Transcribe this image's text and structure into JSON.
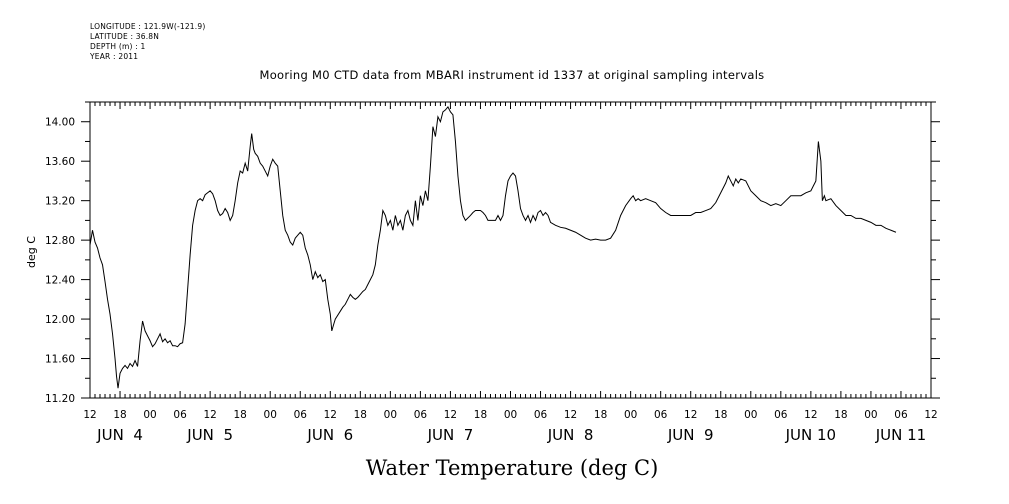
{
  "metadata": [
    "LONGITUDE : 121.9W(-121.9)",
    "LATITUDE : 36.8N",
    "DEPTH (m) : 1",
    "YEAR : 2011"
  ],
  "chart_data": {
    "type": "line",
    "title": "Mooring M0 CTD data from MBARI instrument id 1337 at original sampling intervals",
    "xlabel": "Water Temperature (deg C)",
    "ylabel": "deg C",
    "ylim": [
      11.2,
      14.2
    ],
    "y_ticks": [
      "11.20",
      "11.60",
      "12.00",
      "12.40",
      "12.80",
      "13.20",
      "13.60",
      "14.00"
    ],
    "x_hours_range": [
      0,
      168
    ],
    "x_hour_ticks": [
      "12",
      "18",
      "00",
      "06",
      "12",
      "18",
      "00",
      "06",
      "12",
      "18",
      "00",
      "06",
      "12",
      "18",
      "00",
      "06",
      "12",
      "18",
      "00",
      "06",
      "12",
      "18",
      "00",
      "06",
      "12",
      "18",
      "00",
      "06",
      "12"
    ],
    "x_day_labels": [
      {
        "label": "JUN  4",
        "hour": 6
      },
      {
        "label": "JUN  5",
        "hour": 24
      },
      {
        "label": "JUN  6",
        "hour": 48
      },
      {
        "label": "JUN  7",
        "hour": 72
      },
      {
        "label": "JUN  8",
        "hour": 96
      },
      {
        "label": "JUN  9",
        "hour": 120
      },
      {
        "label": "JUN 10",
        "hour": 144
      },
      {
        "label": "JUN 11",
        "hour": 162
      }
    ],
    "series": [
      {
        "points": [
          [
            0,
            12.75
          ],
          [
            0.5,
            12.9
          ],
          [
            1,
            12.78
          ],
          [
            1.5,
            12.72
          ],
          [
            2,
            12.62
          ],
          [
            2.5,
            12.55
          ],
          [
            3,
            12.38
          ],
          [
            3.5,
            12.2
          ],
          [
            4,
            12.05
          ],
          [
            4.5,
            11.85
          ],
          [
            5,
            11.6
          ],
          [
            5.3,
            11.42
          ],
          [
            5.6,
            11.3
          ],
          [
            6,
            11.45
          ],
          [
            6.5,
            11.5
          ],
          [
            7,
            11.53
          ],
          [
            7.5,
            11.5
          ],
          [
            8,
            11.55
          ],
          [
            8.5,
            11.52
          ],
          [
            9,
            11.58
          ],
          [
            9.5,
            11.52
          ],
          [
            10,
            11.78
          ],
          [
            10.5,
            11.98
          ],
          [
            11,
            11.88
          ],
          [
            11.5,
            11.83
          ],
          [
            12,
            11.78
          ],
          [
            12.5,
            11.72
          ],
          [
            13,
            11.75
          ],
          [
            13.5,
            11.8
          ],
          [
            14,
            11.85
          ],
          [
            14.5,
            11.77
          ],
          [
            15,
            11.8
          ],
          [
            15.5,
            11.76
          ],
          [
            16,
            11.78
          ],
          [
            16.5,
            11.73
          ],
          [
            17,
            11.73
          ],
          [
            17.5,
            11.72
          ],
          [
            18,
            11.75
          ],
          [
            18.5,
            11.76
          ],
          [
            19,
            11.95
          ],
          [
            19.5,
            12.3
          ],
          [
            20,
            12.65
          ],
          [
            20.5,
            12.95
          ],
          [
            21,
            13.1
          ],
          [
            21.5,
            13.2
          ],
          [
            22,
            13.22
          ],
          [
            22.5,
            13.2
          ],
          [
            23,
            13.26
          ],
          [
            23.5,
            13.28
          ],
          [
            24,
            13.3
          ],
          [
            24.5,
            13.27
          ],
          [
            25,
            13.2
          ],
          [
            25.5,
            13.1
          ],
          [
            26,
            13.05
          ],
          [
            26.5,
            13.07
          ],
          [
            27,
            13.12
          ],
          [
            27.5,
            13.08
          ],
          [
            28,
            13.0
          ],
          [
            28.5,
            13.05
          ],
          [
            29,
            13.2
          ],
          [
            29.5,
            13.38
          ],
          [
            30,
            13.5
          ],
          [
            30.5,
            13.48
          ],
          [
            31,
            13.58
          ],
          [
            31.5,
            13.5
          ],
          [
            32,
            13.75
          ],
          [
            32.3,
            13.88
          ],
          [
            32.7,
            13.72
          ],
          [
            33,
            13.68
          ],
          [
            33.5,
            13.65
          ],
          [
            34,
            13.58
          ],
          [
            34.5,
            13.55
          ],
          [
            35,
            13.5
          ],
          [
            35.5,
            13.45
          ],
          [
            36,
            13.55
          ],
          [
            36.5,
            13.62
          ],
          [
            37,
            13.58
          ],
          [
            37.5,
            13.55
          ],
          [
            38,
            13.3
          ],
          [
            38.5,
            13.05
          ],
          [
            39,
            12.9
          ],
          [
            39.5,
            12.85
          ],
          [
            40,
            12.78
          ],
          [
            40.5,
            12.75
          ],
          [
            41,
            12.82
          ],
          [
            41.5,
            12.85
          ],
          [
            42,
            12.88
          ],
          [
            42.5,
            12.85
          ],
          [
            43,
            12.72
          ],
          [
            43.5,
            12.65
          ],
          [
            44,
            12.55
          ],
          [
            44.5,
            12.4
          ],
          [
            45,
            12.48
          ],
          [
            45.5,
            12.42
          ],
          [
            46,
            12.45
          ],
          [
            46.5,
            12.38
          ],
          [
            47,
            12.4
          ],
          [
            47.5,
            12.2
          ],
          [
            48,
            12.05
          ],
          [
            48.3,
            11.88
          ],
          [
            48.7,
            11.95
          ],
          [
            49,
            12.0
          ],
          [
            50,
            12.08
          ],
          [
            50.5,
            12.12
          ],
          [
            51,
            12.15
          ],
          [
            51.5,
            12.2
          ],
          [
            52,
            12.25
          ],
          [
            52.5,
            12.22
          ],
          [
            53,
            12.2
          ],
          [
            53.5,
            12.22
          ],
          [
            54,
            12.25
          ],
          [
            54.5,
            12.28
          ],
          [
            55,
            12.3
          ],
          [
            55.5,
            12.35
          ],
          [
            56,
            12.4
          ],
          [
            56.5,
            12.45
          ],
          [
            57,
            12.55
          ],
          [
            57.5,
            12.75
          ],
          [
            58,
            12.9
          ],
          [
            58.5,
            13.1
          ],
          [
            59,
            13.05
          ],
          [
            59.5,
            12.95
          ],
          [
            60,
            13.0
          ],
          [
            60.5,
            12.9
          ],
          [
            61,
            13.05
          ],
          [
            61.5,
            12.95
          ],
          [
            62,
            13.0
          ],
          [
            62.5,
            12.9
          ],
          [
            63,
            13.05
          ],
          [
            63.5,
            13.1
          ],
          [
            64,
            13.0
          ],
          [
            64.5,
            12.95
          ],
          [
            65,
            13.2
          ],
          [
            65.5,
            13.0
          ],
          [
            66,
            13.25
          ],
          [
            66.5,
            13.15
          ],
          [
            67,
            13.3
          ],
          [
            67.5,
            13.2
          ],
          [
            68,
            13.55
          ],
          [
            68.5,
            13.95
          ],
          [
            69,
            13.85
          ],
          [
            69.5,
            14.05
          ],
          [
            70,
            14.0
          ],
          [
            70.5,
            14.1
          ],
          [
            71,
            14.12
          ],
          [
            71.5,
            14.15
          ],
          [
            72,
            14.1
          ],
          [
            72.5,
            14.07
          ],
          [
            73,
            13.8
          ],
          [
            73.5,
            13.45
          ],
          [
            74,
            13.2
          ],
          [
            74.5,
            13.05
          ],
          [
            75,
            13.0
          ],
          [
            76,
            13.05
          ],
          [
            76.5,
            13.08
          ],
          [
            77,
            13.1
          ],
          [
            78,
            13.1
          ],
          [
            78.5,
            13.08
          ],
          [
            79,
            13.05
          ],
          [
            79.5,
            13.0
          ],
          [
            80,
            13.0
          ],
          [
            81,
            13.0
          ],
          [
            81.5,
            13.05
          ],
          [
            82,
            13.0
          ],
          [
            82.5,
            13.05
          ],
          [
            83,
            13.25
          ],
          [
            83.5,
            13.4
          ],
          [
            84,
            13.45
          ],
          [
            84.5,
            13.48
          ],
          [
            85,
            13.45
          ],
          [
            85.5,
            13.3
          ],
          [
            86,
            13.12
          ],
          [
            86.5,
            13.05
          ],
          [
            87,
            13.0
          ],
          [
            87.5,
            13.05
          ],
          [
            88,
            12.98
          ],
          [
            88.5,
            13.05
          ],
          [
            89,
            13.0
          ],
          [
            89.5,
            13.08
          ],
          [
            90,
            13.1
          ],
          [
            90.5,
            13.05
          ],
          [
            91,
            13.08
          ],
          [
            91.5,
            13.05
          ],
          [
            92,
            12.98
          ],
          [
            93,
            12.95
          ],
          [
            94,
            12.93
          ],
          [
            95,
            12.92
          ],
          [
            96,
            12.9
          ],
          [
            97,
            12.88
          ],
          [
            98,
            12.85
          ],
          [
            99,
            12.82
          ],
          [
            100,
            12.8
          ],
          [
            101,
            12.81
          ],
          [
            102,
            12.8
          ],
          [
            103,
            12.8
          ],
          [
            104,
            12.82
          ],
          [
            105,
            12.9
          ],
          [
            106,
            13.05
          ],
          [
            107,
            13.15
          ],
          [
            108,
            13.22
          ],
          [
            108.5,
            13.25
          ],
          [
            109,
            13.2
          ],
          [
            109.5,
            13.22
          ],
          [
            110,
            13.2
          ],
          [
            111,
            13.22
          ],
          [
            112,
            13.2
          ],
          [
            113,
            13.18
          ],
          [
            114,
            13.12
          ],
          [
            115,
            13.08
          ],
          [
            116,
            13.05
          ],
          [
            117,
            13.05
          ],
          [
            118,
            13.05
          ],
          [
            119,
            13.05
          ],
          [
            120,
            13.05
          ],
          [
            121,
            13.08
          ],
          [
            122,
            13.08
          ],
          [
            123,
            13.1
          ],
          [
            124,
            13.12
          ],
          [
            125,
            13.18
          ],
          [
            126,
            13.28
          ],
          [
            127,
            13.38
          ],
          [
            127.5,
            13.45
          ],
          [
            128,
            13.4
          ],
          [
            128.5,
            13.35
          ],
          [
            129,
            13.42
          ],
          [
            129.5,
            13.38
          ],
          [
            130,
            13.42
          ],
          [
            131,
            13.4
          ],
          [
            132,
            13.3
          ],
          [
            133,
            13.25
          ],
          [
            134,
            13.2
          ],
          [
            135,
            13.18
          ],
          [
            136,
            13.15
          ],
          [
            137,
            13.17
          ],
          [
            138,
            13.15
          ],
          [
            139,
            13.2
          ],
          [
            140,
            13.25
          ],
          [
            141,
            13.25
          ],
          [
            142,
            13.25
          ],
          [
            143,
            13.28
          ],
          [
            144,
            13.3
          ],
          [
            144.5,
            13.35
          ],
          [
            145,
            13.4
          ],
          [
            145.5,
            13.8
          ],
          [
            146,
            13.6
          ],
          [
            146.3,
            13.2
          ],
          [
            146.7,
            13.25
          ],
          [
            147,
            13.2
          ],
          [
            148,
            13.22
          ],
          [
            149,
            13.15
          ],
          [
            150,
            13.1
          ],
          [
            151,
            13.05
          ],
          [
            152,
            13.05
          ],
          [
            153,
            13.02
          ],
          [
            154,
            13.02
          ],
          [
            155,
            13.0
          ],
          [
            156,
            12.98
          ],
          [
            157,
            12.95
          ],
          [
            158,
            12.95
          ],
          [
            159,
            12.92
          ],
          [
            160,
            12.9
          ],
          [
            161,
            12.88
          ]
        ]
      }
    ]
  }
}
